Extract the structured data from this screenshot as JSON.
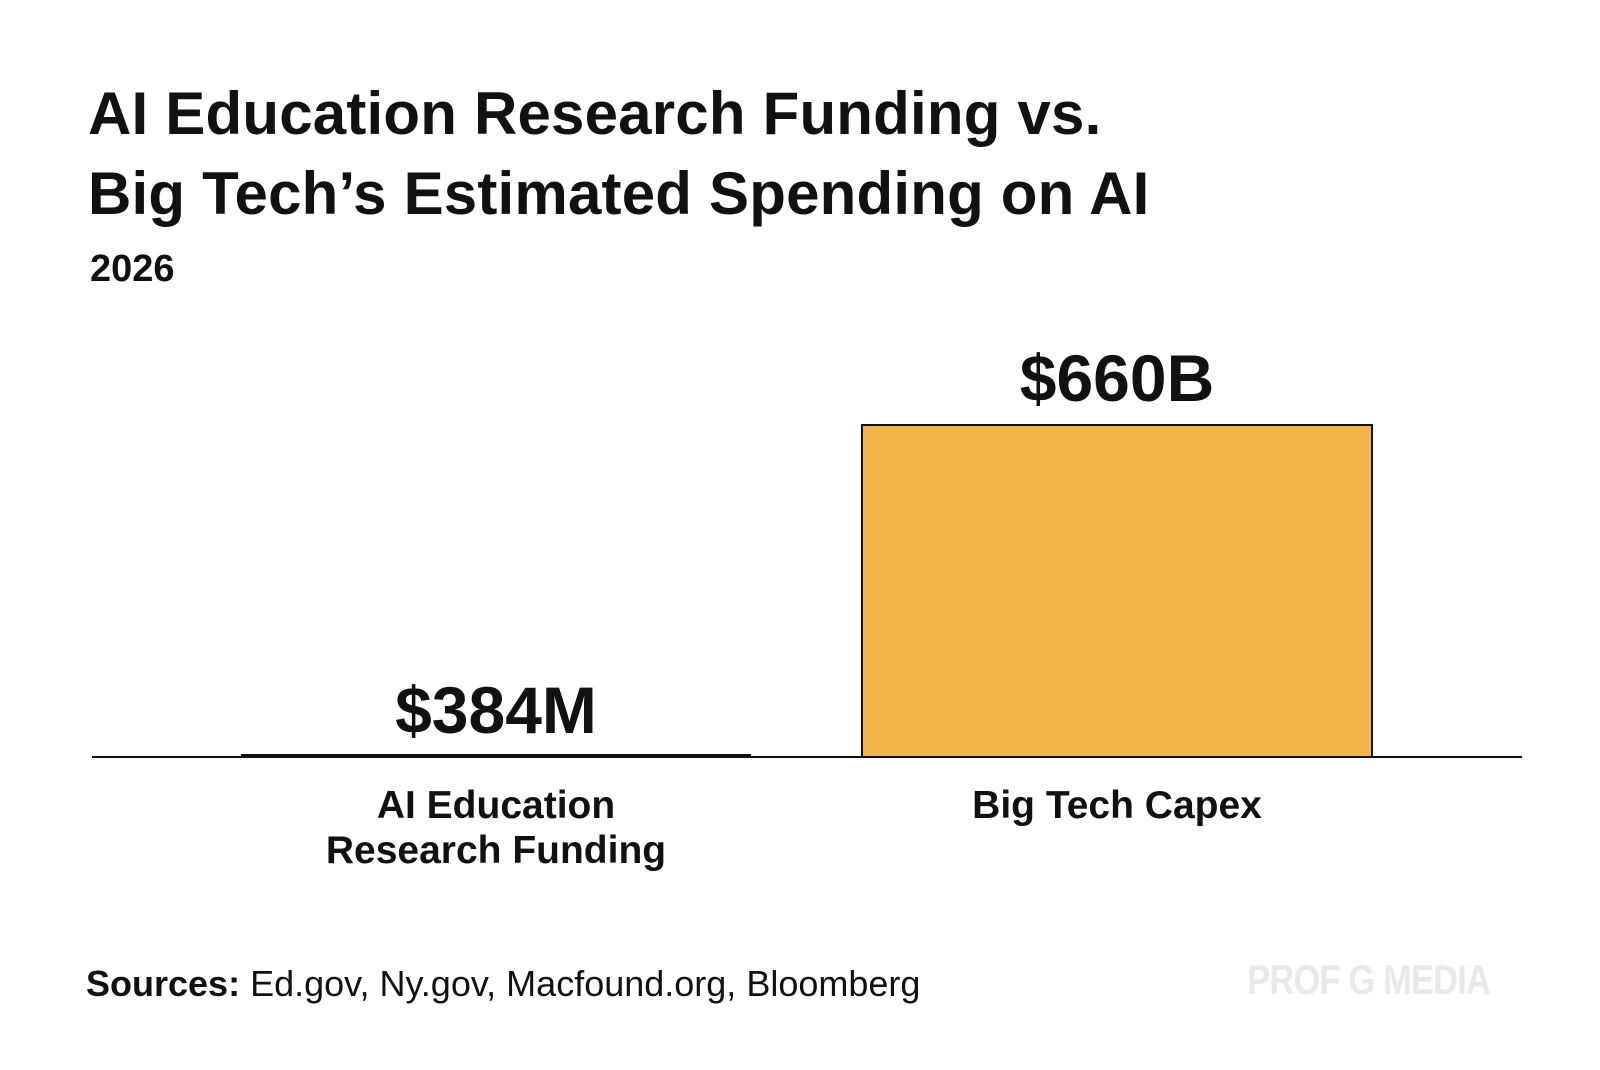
{
  "chart_data": {
    "type": "bar",
    "title_lines": [
      "AI Education Research Funding vs.",
      "Big Tech’s Estimated Spending on AI"
    ],
    "subtitle": "2026",
    "categories": [
      {
        "lines": [
          "AI Education",
          "Research Funding"
        ]
      },
      {
        "lines": [
          "Big Tech Capex"
        ]
      }
    ],
    "values": [
      0.384,
      660
    ],
    "value_unit": "billion USD",
    "data_labels": [
      "$384M",
      "$660B"
    ],
    "ylim": [
      0,
      660
    ],
    "grid": false,
    "xlabel": "",
    "ylabel": "",
    "colors": {
      "bar": "#f4b548",
      "bar_stroke": "#111111",
      "axis": "#111111"
    }
  },
  "footer": {
    "sources_lead": "Sources:",
    "sources_text": " Ed.gov, Ny.gov, Macfound.org, Bloomberg",
    "brand": "PROF G MEDIA"
  }
}
